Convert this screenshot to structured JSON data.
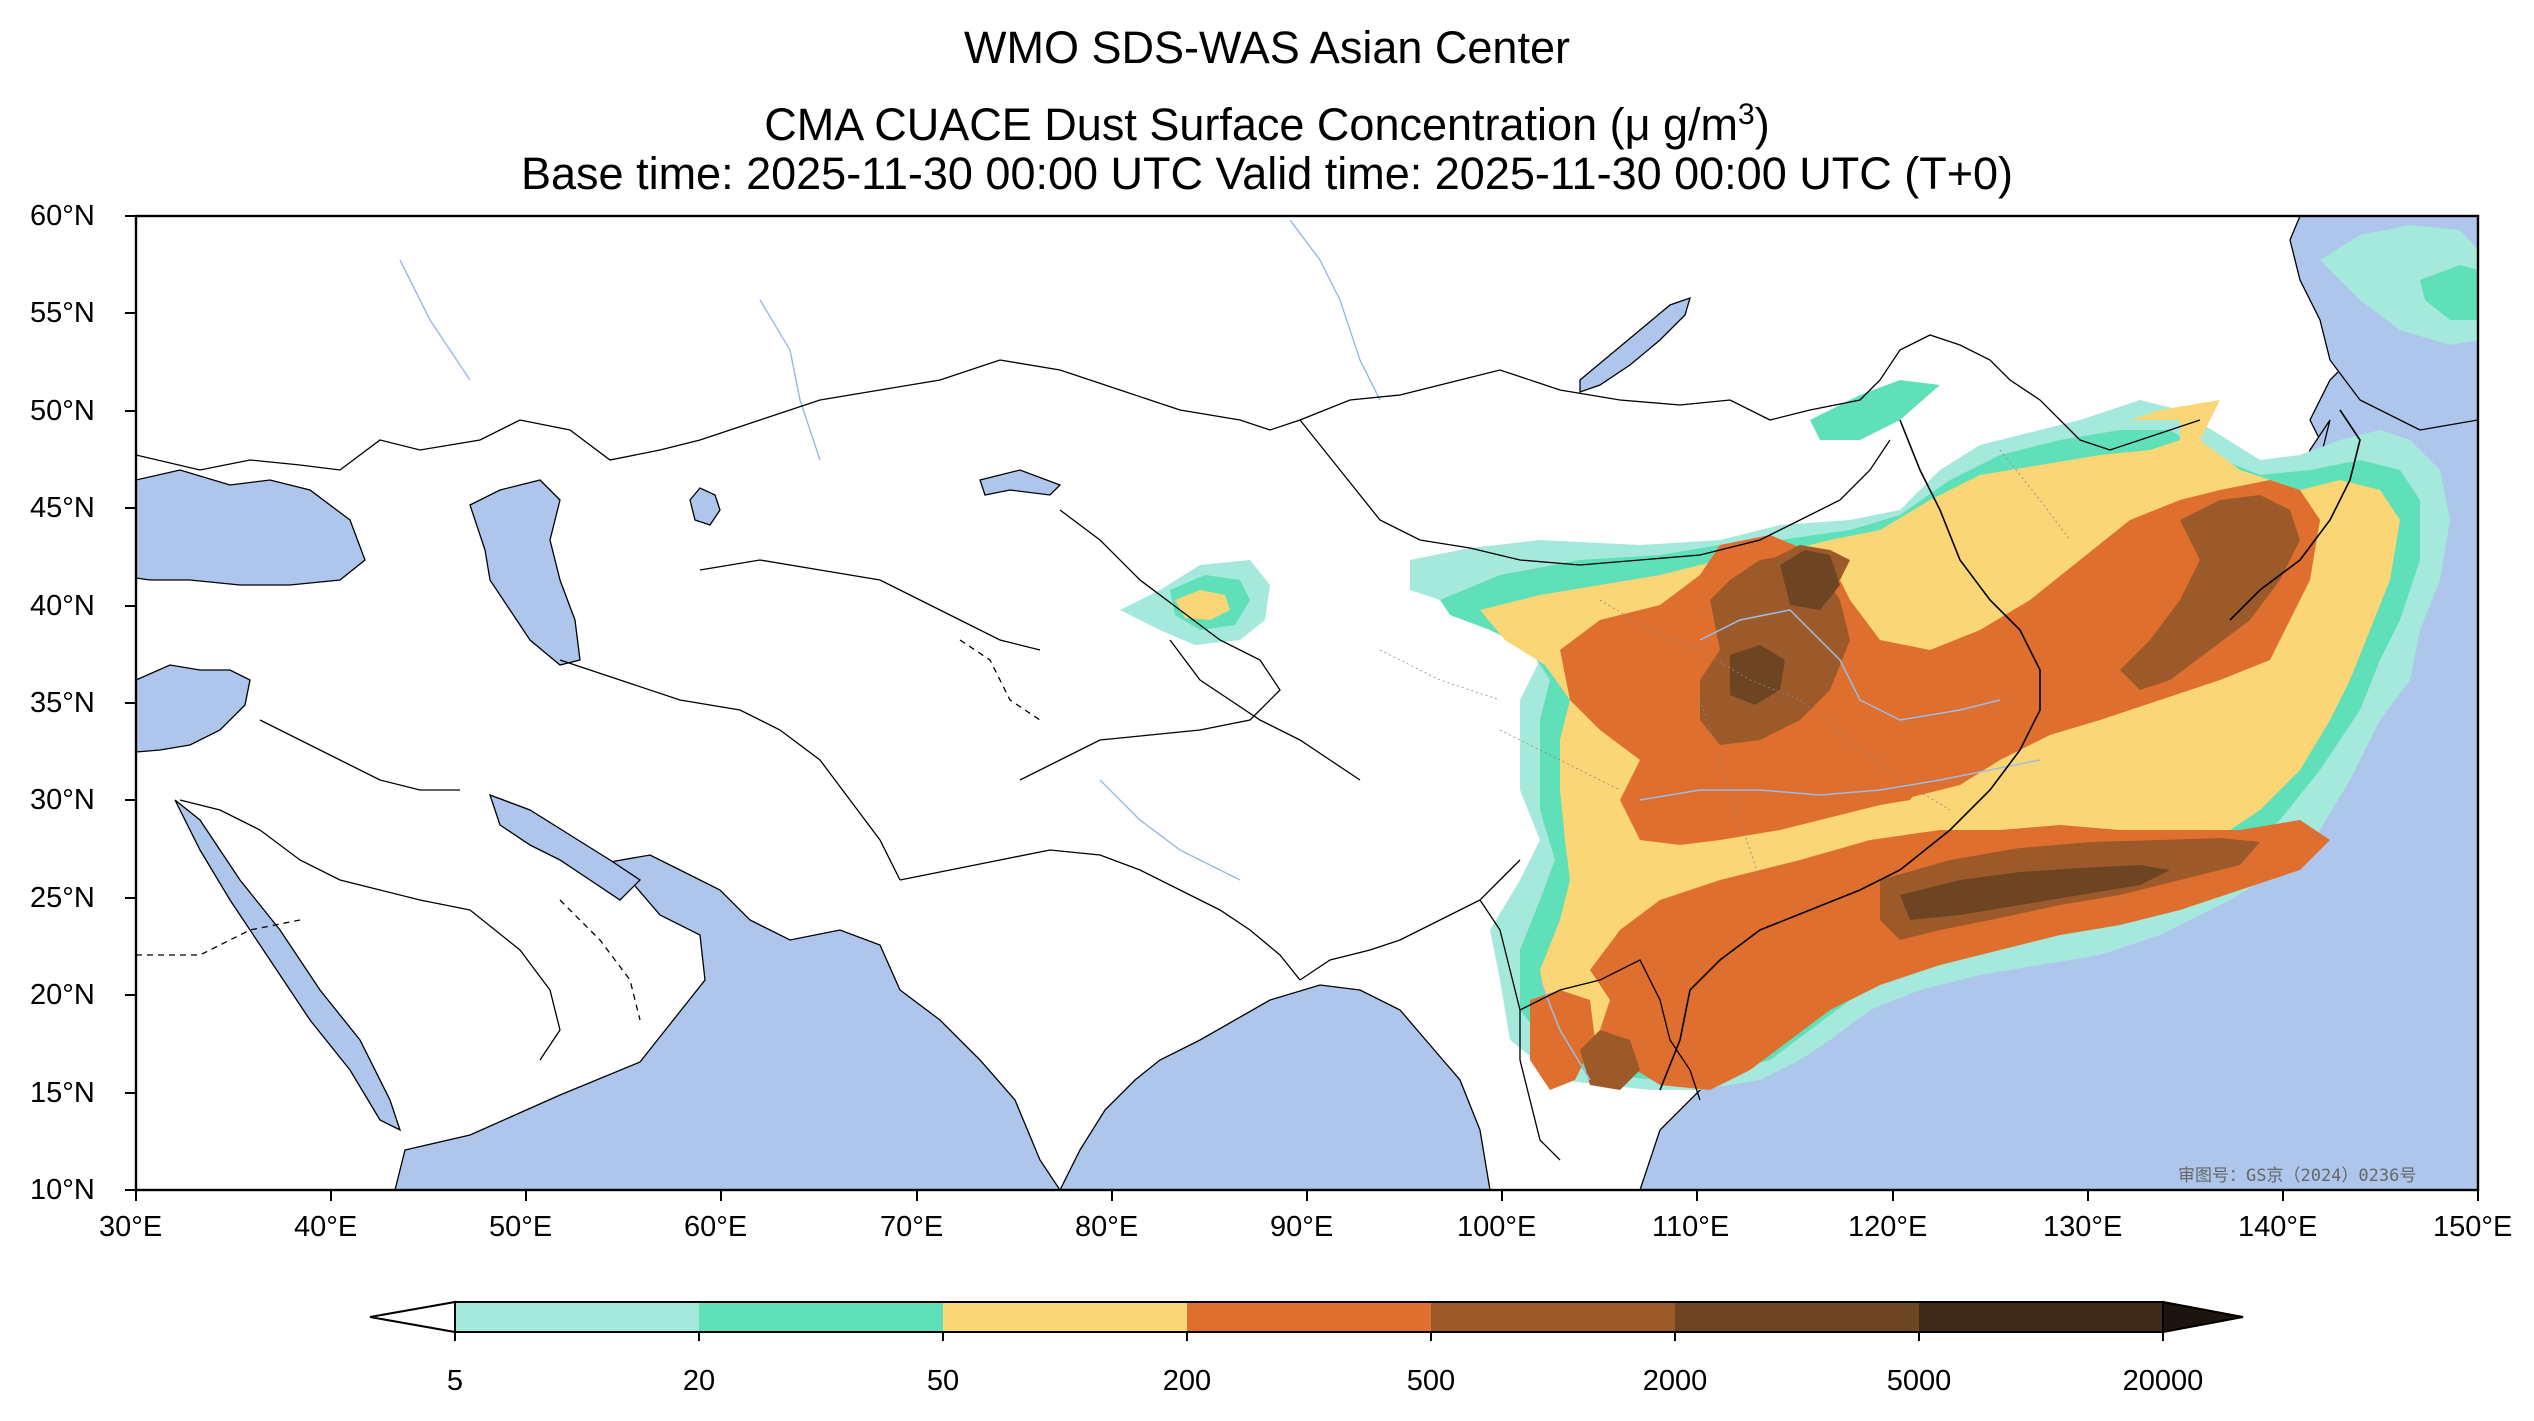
{
  "header": {
    "title_line1": "WMO SDS-WAS Asian Center",
    "title_line2_prefix": "CMA CUACE Dust Surface Concentration (",
    "title_line2_unit": "μ g/m",
    "title_line2_sup": "3",
    "title_line2_suffix": ")",
    "title_line3": "Base time: 2025-11-30 00:00 UTC Valid time: 2025-11-30 00:00 UTC (T+0)"
  },
  "map": {
    "lon_ticks": [
      "30°E",
      "40°E",
      "50°E",
      "60°E",
      "70°E",
      "80°E",
      "90°E",
      "100°E",
      "110°E",
      "120°E",
      "130°E",
      "140°E",
      "150°E"
    ],
    "lat_ticks": [
      "60°N",
      "55°N",
      "50°N",
      "45°N",
      "40°N",
      "35°N",
      "30°N",
      "25°N",
      "20°N",
      "15°N",
      "10°N"
    ],
    "lon_range": [
      30,
      150
    ],
    "lat_range": [
      10,
      60
    ],
    "watermark": "审图号：GS京（2024）0236号",
    "colors": {
      "water": "#aec6ec",
      "land": "#ffffff",
      "border": "#000000",
      "river": "#9fbbe3"
    }
  },
  "colorbar": {
    "labels": [
      "5",
      "20",
      "50",
      "200",
      "500",
      "2000",
      "5000",
      "20000"
    ],
    "bins": [
      {
        "from": "<5",
        "color": "#ffffff"
      },
      {
        "from": "5",
        "to": "20",
        "color": "#a5e8dc"
      },
      {
        "from": "20",
        "to": "50",
        "color": "#5fe0b8"
      },
      {
        "from": "50",
        "to": "200",
        "color": "#fad676"
      },
      {
        "from": "200",
        "to": "500",
        "color": "#df6f2e"
      },
      {
        "from": "500",
        "to": "2000",
        "color": "#9c5a2a"
      },
      {
        "from": "2000",
        "to": "5000",
        "color": "#6e4523"
      },
      {
        "from": "5000",
        "to": "20000",
        "color": "#3d2918"
      },
      {
        "from": ">20000",
        "color": "#1c140e"
      }
    ]
  }
}
